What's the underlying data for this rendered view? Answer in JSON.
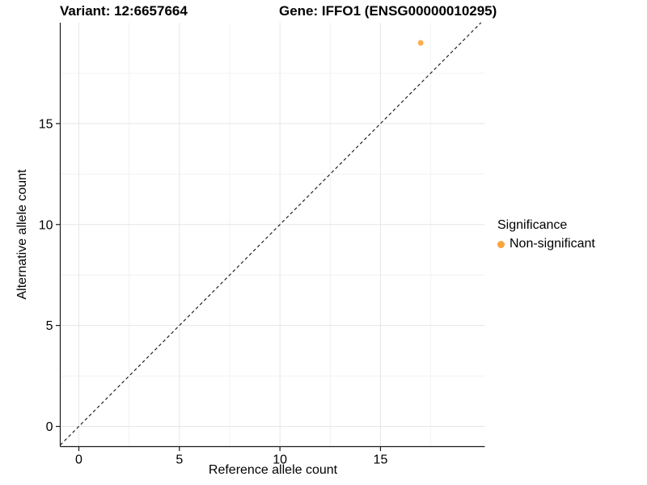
{
  "titles": {
    "variant": "Variant: 12:6657664",
    "gene": "Gene: IFFO1 (ENSG00000010295)"
  },
  "axes": {
    "x_label": "Reference allele count",
    "y_label": "Alternative allele count"
  },
  "legend": {
    "title": "Significance",
    "items": [
      {
        "label": "Non-significant",
        "color": "#FAA43E"
      }
    ]
  },
  "colors": {
    "background": "#FFFFFF",
    "axis_line": "#1a1a1a",
    "grid_major": "#E6E6E6",
    "grid_minor": "#F3F3F3",
    "text": "#000000",
    "point": "#FAA43E",
    "reference_line": "#111111"
  },
  "chart_data": {
    "type": "scatter",
    "title": "Variant: 12:6657664   Gene: IFFO1 (ENSG00000010295)",
    "xlabel": "Reference allele count",
    "ylabel": "Alternative allele count",
    "xlim": [
      -0.925,
      20.19
    ],
    "ylim": [
      -1,
      20
    ],
    "x_ticks": [
      0,
      5,
      10,
      15
    ],
    "y_ticks": [
      0,
      5,
      10,
      15
    ],
    "minor_step": 2.5,
    "grid": true,
    "legend_position": "right",
    "series": [
      {
        "name": "Non-significant",
        "color": "#FAA43E",
        "points": [
          {
            "x": 17,
            "y": 19
          }
        ]
      }
    ],
    "reference_line": {
      "type": "identity",
      "slope": 1,
      "intercept": 0,
      "style": "dashed",
      "color": "#111111"
    }
  }
}
